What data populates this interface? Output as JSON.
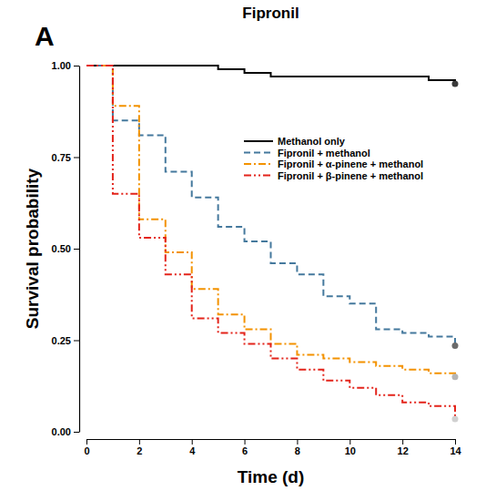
{
  "chart_data": {
    "type": "step",
    "panel_label": "A",
    "title": "Fipronil",
    "x_label": "Time (d)",
    "y_label": "Survival probability",
    "x": [
      0,
      1,
      2,
      3,
      4,
      5,
      6,
      7,
      8,
      9,
      10,
      11,
      12,
      13,
      14
    ],
    "series": [
      {
        "name": "Methanol only",
        "color": "#000000",
        "line_style": "solid",
        "marker": "circle",
        "values": [
          1,
          1,
          1,
          1,
          1,
          0.99,
          0.98,
          0.97,
          0.97,
          0.97,
          0.97,
          0.97,
          0.97,
          0.96,
          0.95
        ]
      },
      {
        "name": "Fipronil + methanol",
        "color": "#45799d",
        "line_style": "dashed",
        "marker": "circle",
        "values": [
          1,
          0.85,
          0.81,
          0.71,
          0.64,
          0.56,
          0.52,
          0.46,
          0.43,
          0.37,
          0.35,
          0.28,
          0.27,
          0.26,
          0.235
        ]
      },
      {
        "name": "Fipronil + α-pinene + methanol",
        "color": "#f39200",
        "line_style": "dashdot",
        "marker": "circle",
        "values": [
          1,
          0.89,
          0.58,
          0.49,
          0.39,
          0.32,
          0.28,
          0.24,
          0.21,
          0.2,
          0.19,
          0.18,
          0.17,
          0.16,
          0.15
        ]
      },
      {
        "name": "Fipronil + β-pinene + methanol",
        "color": "#e3241b",
        "line_style": "dashdotdot",
        "marker": "circle",
        "values": [
          1,
          0.65,
          0.53,
          0.43,
          0.31,
          0.27,
          0.24,
          0.2,
          0.17,
          0.14,
          0.12,
          0.1,
          0.08,
          0.07,
          0.035
        ]
      }
    ],
    "xlim": [
      0,
      14
    ],
    "xticks": [
      0,
      2,
      4,
      6,
      8,
      10,
      12,
      14
    ],
    "ylim": [
      0,
      1
    ],
    "yticks": [
      {
        "value": 0,
        "label": "0.00"
      },
      {
        "value": 0.25,
        "label": "0.25"
      },
      {
        "value": 0.5,
        "label": "0.50"
      },
      {
        "value": 0.75,
        "label": "0.75"
      },
      {
        "value": 1,
        "label": "1.00"
      }
    ],
    "legend": "upper right",
    "grid": false
  }
}
